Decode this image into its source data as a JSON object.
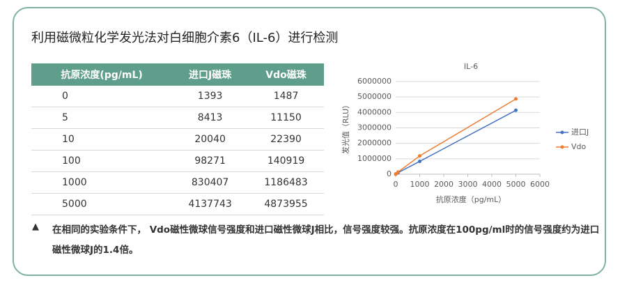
{
  "title": "利用磁微粒化学发光法对白细胞介素6（IL-6）进行检测",
  "table": {
    "header": [
      "抗原浓度(pg/mL)",
      "进口J磁珠",
      "Vdo磁珠"
    ],
    "rows": [
      [
        0,
        1393,
        1487
      ],
      [
        5,
        8413,
        11150
      ],
      [
        10,
        20040,
        22390
      ],
      [
        100,
        98271,
        140919
      ],
      [
        1000,
        830407,
        1186483
      ],
      [
        5000,
        4137743,
        4873955
      ]
    ]
  },
  "chart_data": {
    "type": "line",
    "title": "IL-6",
    "x_label": "抗原浓度（pg/mL）",
    "y_label": "发光值（RLU）",
    "x": [
      0,
      5,
      10,
      100,
      1000,
      5000
    ],
    "series": [
      {
        "name": "进口J",
        "color": "#4472c4",
        "values": [
          1393,
          8413,
          20040,
          98271,
          830407,
          4137743
        ]
      },
      {
        "name": "Vdo",
        "color": "#ed7d31",
        "values": [
          1487,
          11150,
          22390,
          140919,
          1186483,
          4873955
        ]
      }
    ],
    "xlim": [
      0,
      6000
    ],
    "xticks": [
      0,
      1000,
      2000,
      3000,
      4000,
      5000,
      6000
    ],
    "ylim": [
      0,
      6000000
    ],
    "yticks": [
      0,
      1000000,
      2000000,
      3000000,
      4000000,
      5000000,
      6000000
    ],
    "grid": true,
    "legend": "right"
  },
  "note": "在相同的实验条件下， Vdo磁性微球信号强度和进口磁性微球J相比，信号强度较强。抗原浓度在100pg/ml时的信号强度约为进口磁性微球J的1.4倍。"
}
